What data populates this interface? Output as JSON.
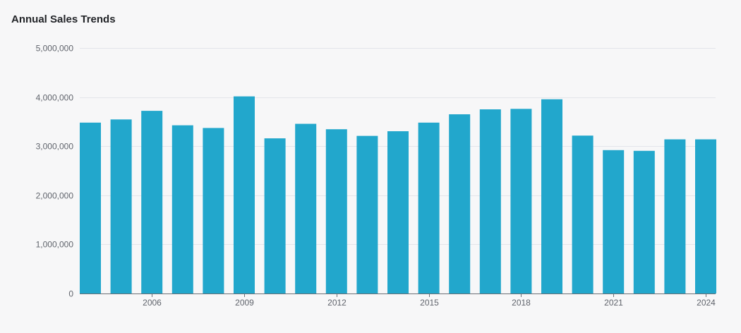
{
  "colors": {
    "background": "#f7f7f8",
    "bar": "#22a7cc",
    "gridline": "#e3e5ea",
    "text": "#222428"
  },
  "chart_data": {
    "type": "bar",
    "title": "Annual Sales Trends",
    "xlabel": "",
    "ylabel": "",
    "categories": [
      "2004",
      "2005",
      "2006",
      "2007",
      "2008",
      "2009",
      "2010",
      "2011",
      "2012",
      "2013",
      "2014",
      "2015",
      "2016",
      "2017",
      "2018",
      "2019",
      "2020",
      "2021",
      "2022",
      "2023",
      "2024"
    ],
    "values": [
      3480000,
      3545000,
      3720000,
      3425000,
      3370000,
      4015000,
      3160000,
      3455000,
      3345000,
      3210000,
      3305000,
      3480000,
      3650000,
      3750000,
      3760000,
      3955000,
      3215000,
      2920000,
      2905000,
      3140000,
      3140000
    ],
    "x_tick_labels": [
      "2006",
      "2009",
      "2012",
      "2015",
      "2018",
      "2021",
      "2024"
    ],
    "y_tick_labels": [
      "0",
      "1,000,000",
      "2,000,000",
      "3,000,000",
      "4,000,000",
      "5,000,000"
    ],
    "y_ticks": [
      0,
      1000000,
      2000000,
      3000000,
      4000000,
      5000000
    ],
    "ylim": [
      0,
      5000000
    ],
    "grid": true
  }
}
